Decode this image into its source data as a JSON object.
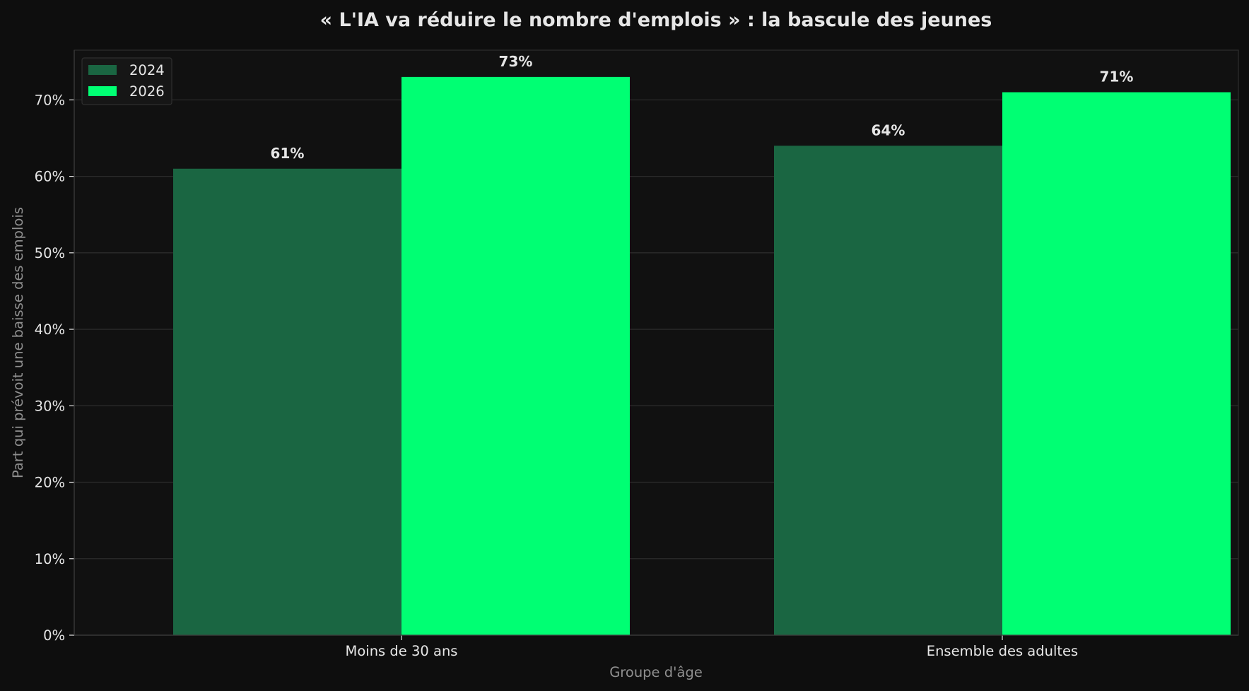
{
  "chart_data": {
    "type": "bar",
    "title": "« L'IA va réduire le nombre d'emplois » : la bascule des jeunes",
    "xlabel": "Groupe d'âge",
    "ylabel": "Part qui prévoit une baisse des emplois",
    "categories": [
      "Moins de 30 ans",
      "Ensemble des adultes"
    ],
    "series": [
      {
        "name": "2024",
        "values": [
          61,
          64
        ],
        "labels": [
          "61%",
          "64%"
        ],
        "color": "#1a6642"
      },
      {
        "name": "2026",
        "values": [
          73,
          71
        ],
        "labels": [
          "73%",
          "71%"
        ],
        "color": "#00ff73"
      }
    ],
    "ylim": [
      0,
      76.5
    ],
    "yticks": [
      0,
      10,
      20,
      30,
      40,
      50,
      60,
      70
    ],
    "ytick_labels": [
      "0%",
      "10%",
      "20%",
      "30%",
      "40%",
      "50%",
      "60%",
      "70%"
    ],
    "grid": true,
    "legend_position": "top-left"
  },
  "colors": {
    "background": "#0e0e0e",
    "plot_background": "#111111",
    "grid": "#2b2b2b",
    "axis": "#3a3a3a",
    "text": "#e6e6e6",
    "muted_text": "#8f8f8f"
  }
}
